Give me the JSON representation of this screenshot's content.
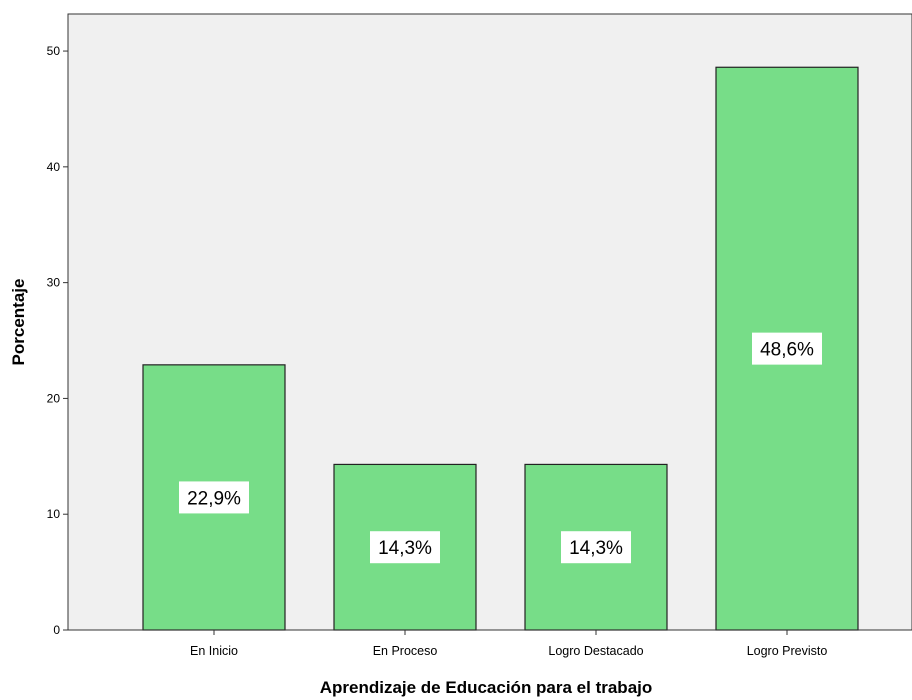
{
  "chart_data": {
    "type": "bar",
    "title": "",
    "xlabel": "Aprendizaje de Educación para el trabajo",
    "ylabel": "Porcentaje",
    "categories": [
      "En Inicio",
      "En Proceso",
      "Logro Destacado",
      "Logro Previsto"
    ],
    "values": [
      22.9,
      14.3,
      14.3,
      48.6
    ],
    "data_labels": [
      "22,9%",
      "14,3%",
      "14,3%",
      "48,6%"
    ],
    "ylim": [
      0,
      53.2
    ],
    "yticks": [
      0,
      10,
      20,
      30,
      40,
      50
    ],
    "grid": false,
    "legend": "none",
    "colors": {
      "plot_background": "#f0f0f0",
      "bar_fill": "#77dd88",
      "bar_stroke": "#222222",
      "label_background": "#ffffff"
    }
  }
}
